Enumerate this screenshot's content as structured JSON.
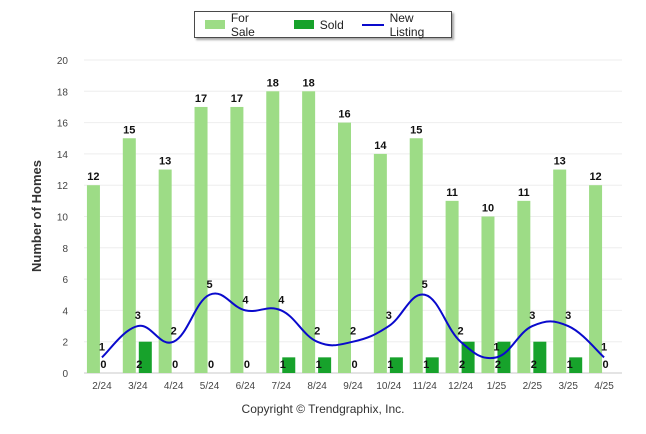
{
  "legend": {
    "items": [
      {
        "label": "For Sale",
        "color": "#9ddc86",
        "kind": "bar"
      },
      {
        "label": "Sold",
        "color": "#17a22b",
        "kind": "bar"
      },
      {
        "label": "New Listing",
        "color": "#0a0acc",
        "kind": "line"
      }
    ]
  },
  "copyright": "Copyright © Trendgraphix, Inc.",
  "chart_data": {
    "type": "bar",
    "title": "",
    "xlabel": "",
    "ylabel": "Number of Homes",
    "ylim": [
      0,
      20
    ],
    "yticks": [
      0,
      2,
      4,
      6,
      8,
      10,
      12,
      14,
      16,
      18,
      20
    ],
    "grid": true,
    "legend_position": "top-center",
    "categories": [
      "2/24",
      "3/24",
      "4/24",
      "5/24",
      "6/24",
      "7/24",
      "8/24",
      "9/24",
      "10/24",
      "11/24",
      "12/24",
      "1/25",
      "2/25",
      "3/25",
      "4/25"
    ],
    "series": [
      {
        "name": "For Sale",
        "type": "bar",
        "color": "#9ddc86",
        "values": [
          12,
          15,
          13,
          17,
          17,
          18,
          18,
          16,
          14,
          15,
          11,
          10,
          11,
          13,
          12
        ]
      },
      {
        "name": "Sold",
        "type": "bar",
        "color": "#17a22b",
        "values": [
          0,
          2,
          0,
          0,
          0,
          1,
          1,
          0,
          1,
          1,
          2,
          2,
          2,
          1,
          0
        ]
      },
      {
        "name": "New Listing",
        "type": "line",
        "color": "#0a0acc",
        "values": [
          1,
          3,
          2,
          5,
          4,
          4,
          2,
          2,
          3,
          5,
          2,
          1,
          3,
          3,
          1
        ]
      }
    ]
  }
}
